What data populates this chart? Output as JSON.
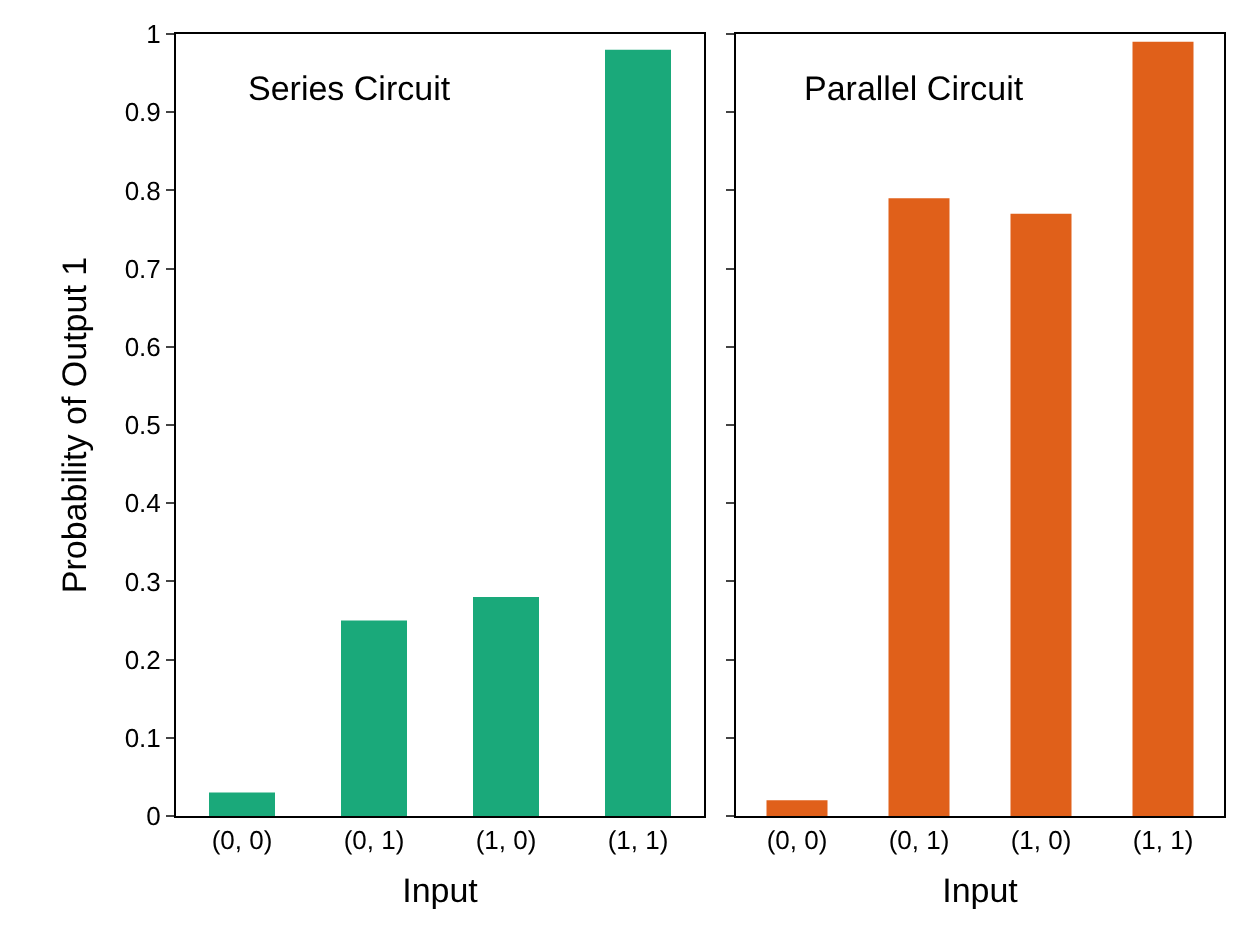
{
  "chart_data": [
    {
      "type": "bar",
      "title": "Series Circuit",
      "xlabel": "Input",
      "ylabel": "Probability of Output 1",
      "categories": [
        "(0, 0)",
        "(0, 1)",
        "(1, 0)",
        "(1, 1)"
      ],
      "values": [
        0.03,
        0.25,
        0.28,
        0.98
      ],
      "color": "#1aa97a",
      "ylim": [
        0,
        1
      ],
      "yticks": [
        0,
        0.1,
        0.2,
        0.3,
        0.4,
        0.5,
        0.6,
        0.7,
        0.8,
        0.9,
        1
      ],
      "grid": false
    },
    {
      "type": "bar",
      "title": "Parallel Circuit",
      "xlabel": "Input",
      "categories": [
        "(0, 0)",
        "(0, 1)",
        "(1, 0)",
        "(1, 1)"
      ],
      "values": [
        0.02,
        0.79,
        0.77,
        0.99
      ],
      "color": "#e0601a",
      "ylim": [
        0,
        1
      ],
      "yticks": [
        0,
        0.1,
        0.2,
        0.3,
        0.4,
        0.5,
        0.6,
        0.7,
        0.8,
        0.9,
        1
      ],
      "grid": false,
      "tick_labels": "x"
    }
  ]
}
